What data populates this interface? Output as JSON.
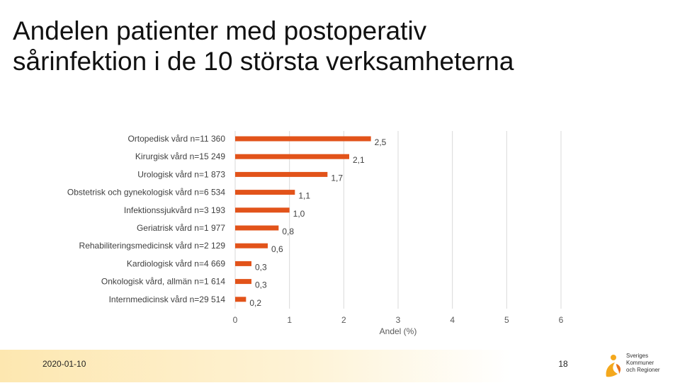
{
  "title": {
    "line1": "Andelen patienter med postoperativ",
    "line2": "sårinfektion i de 10 största verksamheterna"
  },
  "chart_data": {
    "type": "bar",
    "orientation": "horizontal",
    "title": "",
    "xlabel": "Andel (%)",
    "ylabel": "",
    "xlim": [
      0,
      6
    ],
    "xticks": [
      0,
      1,
      2,
      3,
      4,
      5,
      6
    ],
    "xtick_labels": [
      "0",
      "1",
      "2",
      "3",
      "4",
      "5",
      "6"
    ],
    "grid": "vertical",
    "bar_color": "#e2531a",
    "categories": [
      "Ortopedisk vård n=11 360",
      "Kirurgisk vård n=15 249",
      "Urologisk vård n=1 873",
      "Obstetrisk och gynekologisk vård n=6 534",
      "Infektionssjukvård n=3 193",
      "Geriatrisk vård n=1 977",
      "Rehabiliteringsmedicinsk vård n=2 129",
      "Kardiologisk vård n=4 669",
      "Onkologisk vård, allmän n=1 614",
      "Internmedicinsk vård n=29 514"
    ],
    "values": [
      2.5,
      2.1,
      1.7,
      1.1,
      1.0,
      0.8,
      0.6,
      0.3,
      0.3,
      0.2
    ],
    "data_labels": [
      "2,5",
      "2,1",
      "1,7",
      "1,1",
      "1,0",
      "0,8",
      "0,6",
      "0,3",
      "0,3",
      "0,2"
    ]
  },
  "footer": {
    "date": "2020-01-10",
    "page_number": "18"
  },
  "logo": {
    "line1": "Sveriges",
    "line2": "Kommuner",
    "line3": "och Regioner",
    "color": "#f4a81d"
  }
}
